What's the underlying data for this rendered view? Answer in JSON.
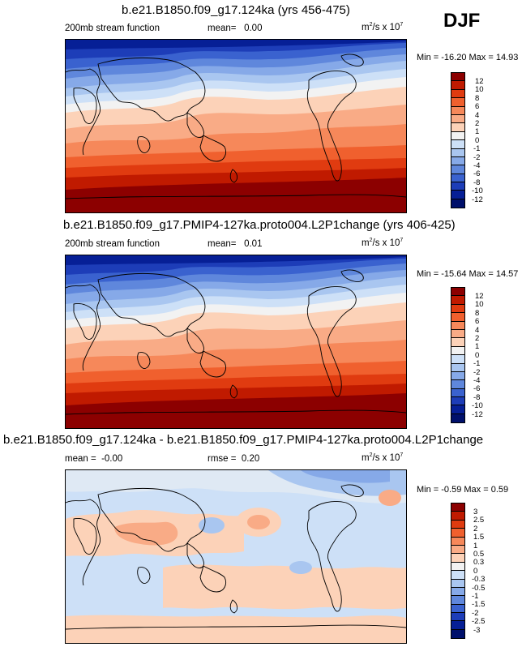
{
  "season": "DJF",
  "units_prefix": "m",
  "units_suffix": "/s x 10",
  "units_exp1": "2",
  "units_exp2": "7",
  "panels": [
    {
      "title": "b.e21.B1850.f09_g17.124ka (yrs 456-475)",
      "variable": "200mb stream function",
      "stat_label": "mean=",
      "stat_value": "0.00",
      "min_max": "Min = -16.20 Max = 14.93",
      "levels": [
        "12",
        "10",
        "8",
        "6",
        "4",
        "2",
        "1",
        "0",
        "-1",
        "-2",
        "-4",
        "-6",
        "-8",
        "-10",
        "-12"
      ],
      "colors": [
        "#8c0000",
        "#c01a00",
        "#e03b10",
        "#f0602e",
        "#f6885a",
        "#f9ab86",
        "#fcd2b8",
        "#f2f2f2",
        "#cde0f7",
        "#a9c6f0",
        "#86a9e8",
        "#5f87dc",
        "#3a62cf",
        "#1d3db8",
        "#061f96",
        "#00106b"
      ]
    },
    {
      "title": "b.e21.B1850.f09_g17.PMIP4-127ka.proto004.L2P1change (yrs 406-425)",
      "variable": "200mb stream function",
      "stat_label": "mean=",
      "stat_value": "0.01",
      "min_max": "Min = -15.64 Max = 14.57",
      "levels": [
        "12",
        "10",
        "8",
        "6",
        "4",
        "2",
        "1",
        "0",
        "-1",
        "-2",
        "-4",
        "-6",
        "-8",
        "-10",
        "-12"
      ],
      "colors": [
        "#8c0000",
        "#c01a00",
        "#e03b10",
        "#f0602e",
        "#f6885a",
        "#f9ab86",
        "#fcd2b8",
        "#f2f2f2",
        "#cde0f7",
        "#a9c6f0",
        "#86a9e8",
        "#5f87dc",
        "#3a62cf",
        "#1d3db8",
        "#061f96",
        "#00106b"
      ]
    },
    {
      "title": "b.e21.B1850.f09_g17.124ka - b.e21.B1850.f09_g17.PMIP4-127ka.proto004.L2P1change",
      "mean_label": "mean =",
      "mean_value": "-0.00",
      "stat_label": "rmse =",
      "stat_value": "0.20",
      "min_max": "Min =  -0.59 Max =   0.59",
      "levels": [
        "3",
        "2.5",
        "2",
        "1.5",
        "1",
        "0.5",
        "0.3",
        "0",
        "-0.3",
        "-0.5",
        "-1",
        "-1.5",
        "-2",
        "-2.5",
        "-3"
      ],
      "colors": [
        "#8c0000",
        "#c01a00",
        "#e03b10",
        "#f0602e",
        "#f6885a",
        "#f9ab86",
        "#fcd2b8",
        "#f2f2f2",
        "#cde0f7",
        "#a9c6f0",
        "#86a9e8",
        "#5f87dc",
        "#3a62cf",
        "#1d3db8",
        "#061f96",
        "#00106b"
      ]
    }
  ]
}
